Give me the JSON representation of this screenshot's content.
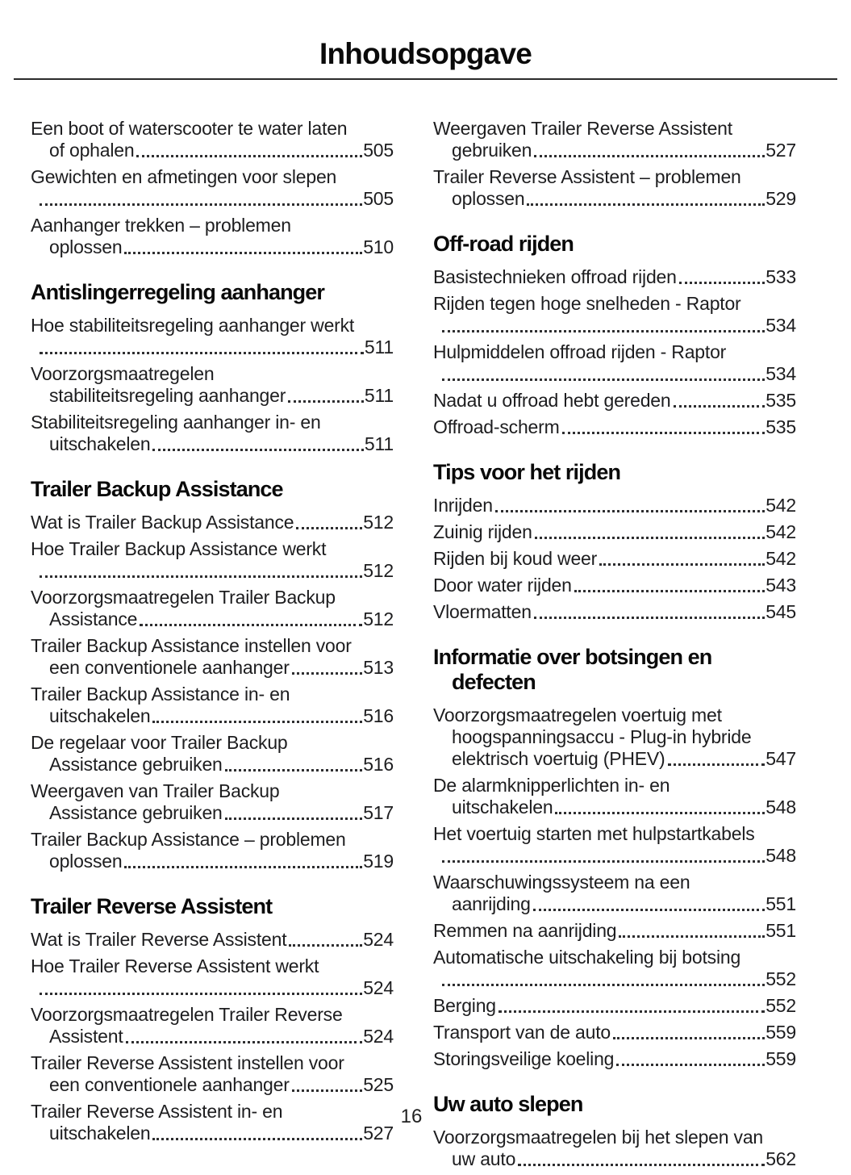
{
  "page": {
    "title": "Inhoudsopgave",
    "footer_page_number": "16"
  },
  "colors": {
    "text": "#1d1d1f",
    "heading": "#0a0a0a",
    "rule": "#2b2b2b",
    "paper": "#ffffff"
  },
  "toc": {
    "columns": [
      {
        "blocks": [
          {
            "type": "entries",
            "items": [
              {
                "lines": [
                  "Een boot of waterscooter te water laten",
                  "of ophalen"
                ],
                "page": "505"
              },
              {
                "lines": [
                  "Gewichten en afmetingen voor slepen",
                  ""
                ],
                "page": "505"
              },
              {
                "lines": [
                  "Aanhanger trekken – problemen",
                  "oplossen"
                ],
                "page": "510"
              }
            ]
          },
          {
            "type": "heading",
            "lines": [
              "Antislingerregeling aanhanger"
            ]
          },
          {
            "type": "entries",
            "items": [
              {
                "lines": [
                  "Hoe stabiliteitsregeling aanhanger werkt",
                  ""
                ],
                "page": "511"
              },
              {
                "lines": [
                  "Voorzorgsmaatregelen",
                  "stabiliteitsregeling aanhanger"
                ],
                "page": "511"
              },
              {
                "lines": [
                  "Stabiliteitsregeling aanhanger in- en",
                  "uitschakelen"
                ],
                "page": "511"
              }
            ]
          },
          {
            "type": "heading",
            "lines": [
              "Trailer Backup Assistance"
            ]
          },
          {
            "type": "entries",
            "items": [
              {
                "lines": [
                  "Wat is Trailer Backup Assistance"
                ],
                "page": "512"
              },
              {
                "lines": [
                  "Hoe Trailer Backup Assistance werkt",
                  ""
                ],
                "page": "512"
              },
              {
                "lines": [
                  "Voorzorgsmaatregelen Trailer Backup",
                  "Assistance"
                ],
                "page": "512"
              },
              {
                "lines": [
                  "Trailer Backup Assistance instellen voor",
                  "een conventionele aanhanger"
                ],
                "page": "513"
              },
              {
                "lines": [
                  "Trailer Backup Assistance in- en",
                  "uitschakelen"
                ],
                "page": "516"
              },
              {
                "lines": [
                  "De regelaar voor Trailer Backup",
                  "Assistance gebruiken"
                ],
                "page": "516"
              },
              {
                "lines": [
                  "Weergaven van Trailer Backup",
                  "Assistance gebruiken"
                ],
                "page": "517"
              },
              {
                "lines": [
                  "Trailer Backup Assistance – problemen",
                  "oplossen"
                ],
                "page": "519"
              }
            ]
          },
          {
            "type": "heading",
            "lines": [
              "Trailer Reverse Assistent"
            ]
          },
          {
            "type": "entries",
            "items": [
              {
                "lines": [
                  "Wat is Trailer Reverse Assistent"
                ],
                "page": "524"
              },
              {
                "lines": [
                  "Hoe Trailer Reverse Assistent werkt",
                  ""
                ],
                "page": "524"
              },
              {
                "lines": [
                  "Voorzorgsmaatregelen Trailer Reverse",
                  "Assistent"
                ],
                "page": "524"
              },
              {
                "lines": [
                  "Trailer Reverse Assistent instellen voor",
                  "een conventionele aanhanger"
                ],
                "page": "525"
              },
              {
                "lines": [
                  "Trailer Reverse Assistent in- en",
                  "uitschakelen"
                ],
                "page": "527"
              }
            ]
          }
        ]
      },
      {
        "blocks": [
          {
            "type": "entries",
            "items": [
              {
                "lines": [
                  "Weergaven Trailer Reverse Assistent",
                  "gebruiken"
                ],
                "page": "527"
              },
              {
                "lines": [
                  "Trailer Reverse Assistent – problemen",
                  "oplossen"
                ],
                "page": "529"
              }
            ]
          },
          {
            "type": "heading",
            "lines": [
              "Off-road rijden"
            ]
          },
          {
            "type": "entries",
            "items": [
              {
                "lines": [
                  "Basistechnieken offroad rijden"
                ],
                "page": "533"
              },
              {
                "lines": [
                  "Rijden tegen hoge snelheden - Raptor",
                  ""
                ],
                "page": "534"
              },
              {
                "lines": [
                  "Hulpmiddelen offroad rijden - Raptor",
                  ""
                ],
                "page": "534"
              },
              {
                "lines": [
                  "Nadat u offroad hebt gereden"
                ],
                "page": "535"
              },
              {
                "lines": [
                  "Offroad-scherm"
                ],
                "page": "535"
              }
            ]
          },
          {
            "type": "heading",
            "lines": [
              "Tips voor het rijden"
            ]
          },
          {
            "type": "entries",
            "items": [
              {
                "lines": [
                  "Inrijden"
                ],
                "page": "542"
              },
              {
                "lines": [
                  "Zuinig rijden"
                ],
                "page": "542"
              },
              {
                "lines": [
                  "Rijden bij koud weer"
                ],
                "page": "542"
              },
              {
                "lines": [
                  "Door water rijden"
                ],
                "page": "543"
              },
              {
                "lines": [
                  "Vloermatten"
                ],
                "page": "545"
              }
            ]
          },
          {
            "type": "heading",
            "lines": [
              "Informatie over botsingen en",
              "defecten"
            ]
          },
          {
            "type": "entries",
            "items": [
              {
                "lines": [
                  "Voorzorgsmaatregelen voertuig met",
                  "hoogspanningsaccu - Plug-in hybride",
                  "elektrisch voertuig (PHEV)"
                ],
                "page": "547"
              },
              {
                "lines": [
                  "De alarmknipperlichten in- en",
                  "uitschakelen"
                ],
                "page": "548"
              },
              {
                "lines": [
                  "Het voertuig starten met hulpstartkabels",
                  ""
                ],
                "page": "548"
              },
              {
                "lines": [
                  "Waarschuwingssysteem na een",
                  "aanrijding"
                ],
                "page": "551"
              },
              {
                "lines": [
                  "Remmen na aanrijding"
                ],
                "page": "551"
              },
              {
                "lines": [
                  "Automatische uitschakeling bij botsing",
                  ""
                ],
                "page": "552"
              },
              {
                "lines": [
                  "Berging"
                ],
                "page": "552"
              },
              {
                "lines": [
                  "Transport van de auto"
                ],
                "page": "559"
              },
              {
                "lines": [
                  "Storingsveilige koeling"
                ],
                "page": "559"
              }
            ]
          },
          {
            "type": "heading",
            "lines": [
              "Uw auto slepen"
            ]
          },
          {
            "type": "entries",
            "items": [
              {
                "lines": [
                  "Voorzorgsmaatregelen bij het slepen van",
                  "uw auto"
                ],
                "page": "562"
              }
            ]
          }
        ]
      }
    ]
  }
}
